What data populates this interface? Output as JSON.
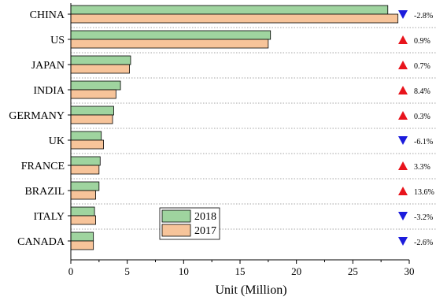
{
  "chart_data": {
    "type": "bar",
    "orientation": "horizontal",
    "categories": [
      "CHINA",
      "US",
      "JAPAN",
      "INDIA",
      "GERMANY",
      "UK",
      "FRANCE",
      "BRAZIL",
      "ITALY",
      "CANADA"
    ],
    "series": [
      {
        "name": "2018",
        "color": "#9fd49f",
        "values": [
          28.1,
          17.7,
          5.3,
          4.4,
          3.8,
          2.7,
          2.6,
          2.5,
          2.1,
          2.0
        ]
      },
      {
        "name": "2017",
        "color": "#f7c49a",
        "values": [
          29.0,
          17.5,
          5.2,
          4.0,
          3.7,
          2.9,
          2.5,
          2.2,
          2.2,
          2.0
        ]
      }
    ],
    "changes": [
      {
        "label": "-2.8%",
        "direction": "down"
      },
      {
        "label": "0.9%",
        "direction": "up"
      },
      {
        "label": "0.7%",
        "direction": "up"
      },
      {
        "label": "8.4%",
        "direction": "up"
      },
      {
        "label": "0.3%",
        "direction": "up"
      },
      {
        "label": "-6.1%",
        "direction": "down"
      },
      {
        "label": "3.3%",
        "direction": "up"
      },
      {
        "label": "13.6%",
        "direction": "up"
      },
      {
        "label": "-3.2%",
        "direction": "down"
      },
      {
        "label": "-2.6%",
        "direction": "down"
      }
    ],
    "up_color": "#e8141c",
    "down_color": "#1c1cdc",
    "xlabel": "Unit (Million)",
    "xlim": [
      0,
      30
    ],
    "xticks": [
      0,
      5,
      10,
      15,
      20,
      25,
      30
    ],
    "grid": "horizontal dotted separators",
    "legend_position": "inside lower-middle"
  }
}
